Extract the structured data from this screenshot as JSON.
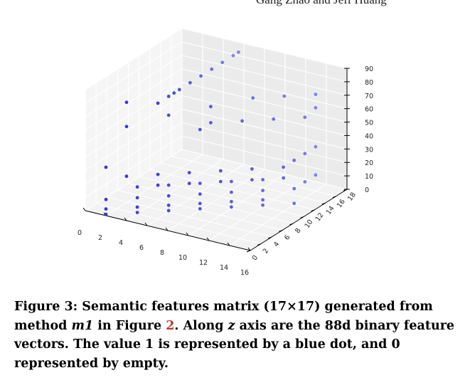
{
  "header": {
    "running_head": "Gang Zhao and Jeff Huang"
  },
  "chart_data": {
    "type": "scatter",
    "projection": "3d",
    "title": "",
    "xlabel": "",
    "ylabel": "",
    "zlabel": "",
    "xlim": [
      0,
      16
    ],
    "ylim": [
      0,
      18
    ],
    "zlim": [
      0,
      90
    ],
    "x_ticks": [
      "0",
      "2",
      "4",
      "6",
      "8",
      "10",
      "12",
      "14",
      "16"
    ],
    "y_ticks": [
      "0",
      "2",
      "4",
      "6",
      "8",
      "10",
      "12",
      "14",
      "16",
      "18"
    ],
    "z_ticks": [
      "0",
      "10",
      "20",
      "30",
      "40",
      "50",
      "60",
      "70",
      "80",
      "90"
    ],
    "grid": true,
    "marker_color": "#2b2bd9",
    "points": [
      [
        4,
        0,
        88
      ],
      [
        6,
        2,
        86
      ],
      [
        6,
        4,
        86
      ],
      [
        6,
        5,
        86
      ],
      [
        6,
        6,
        86
      ],
      [
        6,
        8,
        86
      ],
      [
        6,
        10,
        86
      ],
      [
        6,
        12,
        86
      ],
      [
        6,
        14,
        86
      ],
      [
        6,
        16,
        86
      ],
      [
        6,
        17,
        86
      ],
      [
        4,
        0,
        70
      ],
      [
        6,
        4,
        72
      ],
      [
        8,
        8,
        72
      ],
      [
        10,
        12,
        72
      ],
      [
        12,
        14,
        72
      ],
      [
        14,
        16,
        72
      ],
      [
        8,
        6,
        60
      ],
      [
        8,
        8,
        60
      ],
      [
        10,
        10,
        60
      ],
      [
        12,
        12,
        60
      ],
      [
        14,
        14,
        60
      ],
      [
        14,
        16,
        62
      ],
      [
        2,
        0,
        36
      ],
      [
        4,
        0,
        33
      ],
      [
        6,
        2,
        33
      ],
      [
        8,
        4,
        33
      ],
      [
        10,
        6,
        33
      ],
      [
        12,
        8,
        33
      ],
      [
        14,
        10,
        33
      ],
      [
        14,
        12,
        33
      ],
      [
        14,
        14,
        33
      ],
      [
        14,
        16,
        33
      ],
      [
        2,
        0,
        12
      ],
      [
        4,
        2,
        12
      ],
      [
        6,
        4,
        12
      ],
      [
        8,
        6,
        12
      ],
      [
        10,
        8,
        12
      ],
      [
        12,
        10,
        12
      ],
      [
        14,
        12,
        12
      ],
      [
        14,
        14,
        12
      ],
      [
        14,
        16,
        12
      ],
      [
        2,
        0,
        5
      ],
      [
        4,
        2,
        5
      ],
      [
        6,
        4,
        5
      ],
      [
        8,
        6,
        5
      ],
      [
        10,
        8,
        5
      ],
      [
        12,
        10,
        5
      ],
      [
        2,
        0,
        1
      ],
      [
        4,
        2,
        1
      ],
      [
        6,
        4,
        1
      ],
      [
        8,
        6,
        1
      ],
      [
        10,
        8,
        1
      ],
      [
        12,
        10,
        1
      ],
      [
        14,
        12,
        1
      ],
      [
        4,
        2,
        20
      ],
      [
        6,
        4,
        20
      ],
      [
        8,
        6,
        20
      ],
      [
        10,
        8,
        20
      ],
      [
        12,
        10,
        20
      ],
      [
        6,
        2,
        25
      ],
      [
        8,
        4,
        25
      ],
      [
        10,
        6,
        25
      ],
      [
        12,
        8,
        25
      ],
      [
        14,
        10,
        25
      ]
    ]
  },
  "caption": {
    "part1": "Figure 3: Semantic features matrix (17×17) generated from method ",
    "method": "m1",
    "part2": " in Figure ",
    "ref": "2",
    "part3": ". Along ",
    "axis": "z",
    "part4": " axis are the 88d binary feature vectors. The value 1 is represented by a blue dot, and 0 represented by empty."
  }
}
